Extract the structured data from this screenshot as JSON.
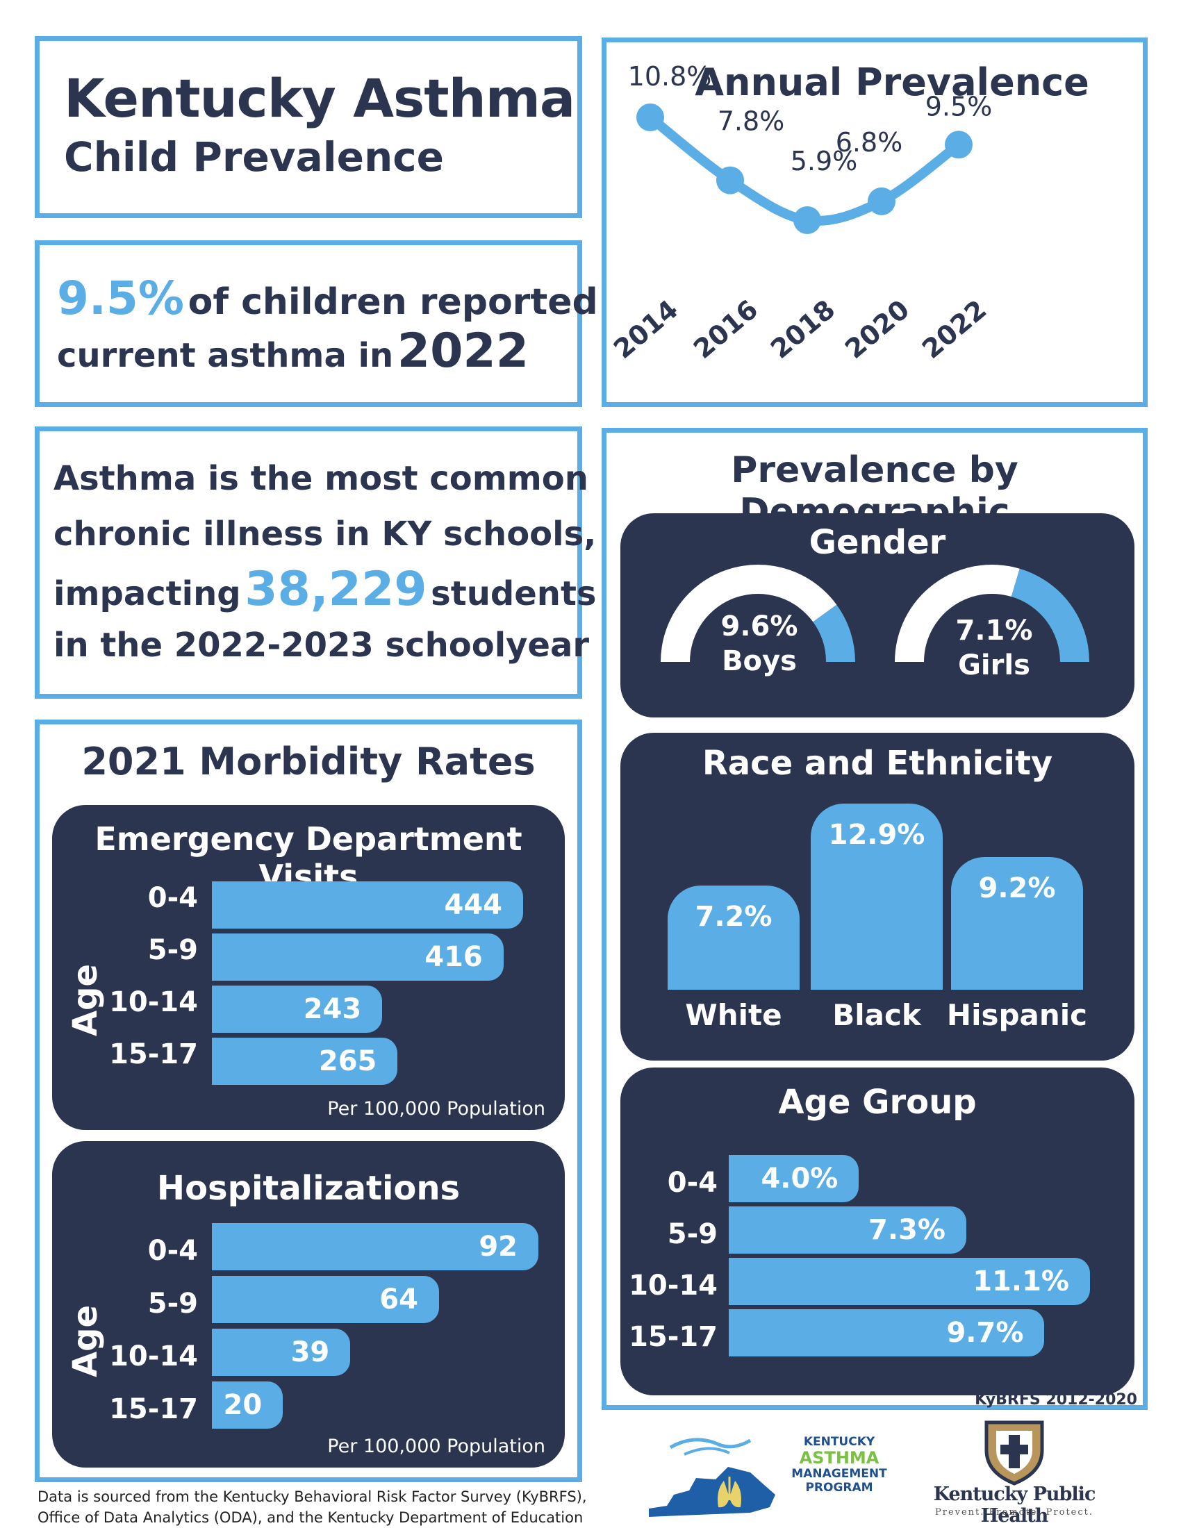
{
  "header": {
    "title": "Kentucky Asthma",
    "subtitle": "Child Prevalence"
  },
  "highlight": {
    "percent": "9.5%",
    "text1": "of children reported",
    "text2": "current asthma in",
    "year": "2022"
  },
  "schools": {
    "line1": "Asthma is the most common",
    "line2": "chronic illness in KY schools,",
    "impacting": "impacting",
    "count": "38,229",
    "students": "students",
    "line4": "in the 2022-2023 schoolyear"
  },
  "annual": {
    "title": "Annual Prevalence",
    "chart_data": {
      "type": "line",
      "title": "Annual Prevalence",
      "x": [
        "2014",
        "2016",
        "2018",
        "2020",
        "2022"
      ],
      "values": [
        10.8,
        7.8,
        5.9,
        6.8,
        9.5
      ],
      "labels": [
        "10.8%",
        "7.8%",
        "5.9%",
        "6.8%",
        "9.5%"
      ],
      "unit": "%"
    }
  },
  "morbidity": {
    "title": "2021 Morbidity Rates",
    "axis_label": "Age",
    "note": "Per 100,000 Population",
    "ed": {
      "title": "Emergency Department Visits",
      "chart_data": {
        "type": "bar",
        "orientation": "horizontal",
        "categories": [
          "0-4",
          "5-9",
          "10-14",
          "15-17"
        ],
        "values": [
          444,
          416,
          243,
          265
        ],
        "xlim": [
          0,
          444
        ]
      }
    },
    "hosp": {
      "title": "Hospitalizations",
      "chart_data": {
        "type": "bar",
        "orientation": "horizontal",
        "categories": [
          "0-4",
          "5-9",
          "10-14",
          "15-17"
        ],
        "values": [
          92,
          64,
          39,
          20
        ],
        "xlim": [
          0,
          92
        ]
      }
    }
  },
  "demographic": {
    "title": "Prevalence by Demographic",
    "gender": {
      "title": "Gender",
      "chart_data": {
        "type": "gauge",
        "categories": [
          "Boys",
          "Girls"
        ],
        "values": [
          9.6,
          7.1
        ],
        "labels": [
          "9.6%",
          "7.1%"
        ]
      }
    },
    "race": {
      "title": "Race and Ethnicity",
      "chart_data": {
        "type": "bar",
        "categories": [
          "White",
          "Black",
          "Hispanic"
        ],
        "values": [
          7.2,
          12.9,
          9.2
        ],
        "labels": [
          "7.2%",
          "12.9%",
          "9.2%"
        ]
      }
    },
    "age": {
      "title": "Age Group",
      "chart_data": {
        "type": "bar",
        "orientation": "horizontal",
        "categories": [
          "0-4",
          "5-9",
          "10-14",
          "15-17"
        ],
        "values": [
          4.0,
          7.3,
          11.1,
          9.7
        ],
        "labels": [
          "4.0%",
          "7.3%",
          "11.1%",
          "9.7%"
        ]
      }
    },
    "source": "KyBRFS 2012-2020"
  },
  "footer": {
    "source_line1": "Data is sourced from the Kentucky Behavioral Risk Factor Survey (KyBRFS),",
    "source_line2": "Office of Data Analytics (ODA), and the Kentucky Department of Education",
    "kamp": {
      "l1": "KENTUCKY",
      "l2": "ASTHMA",
      "l3": "MANAGEMENT",
      "l4": "PROGRAM"
    },
    "kph": {
      "name": "Kentucky Public Health",
      "tagline": "Prevent. Promote. Protect."
    }
  },
  "colors": {
    "navy": "#2b3550",
    "blue": "#5aaee5",
    "green": "#7ac143",
    "gold": "#b8955a"
  }
}
